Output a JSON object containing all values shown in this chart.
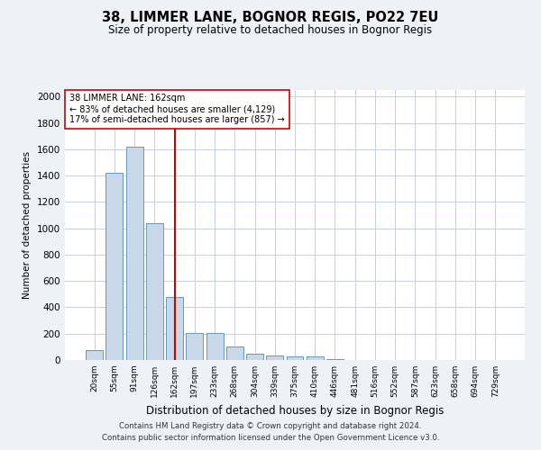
{
  "title1": "38, LIMMER LANE, BOGNOR REGIS, PO22 7EU",
  "title2": "Size of property relative to detached houses in Bognor Regis",
  "xlabel": "Distribution of detached houses by size in Bognor Regis",
  "ylabel": "Number of detached properties",
  "categories": [
    "20sqm",
    "55sqm",
    "91sqm",
    "126sqm",
    "162sqm",
    "197sqm",
    "233sqm",
    "268sqm",
    "304sqm",
    "339sqm",
    "375sqm",
    "410sqm",
    "446sqm",
    "481sqm",
    "516sqm",
    "552sqm",
    "587sqm",
    "623sqm",
    "658sqm",
    "694sqm",
    "729sqm"
  ],
  "values": [
    75,
    1420,
    1620,
    1040,
    480,
    205,
    205,
    100,
    50,
    35,
    25,
    25,
    10,
    0,
    0,
    0,
    0,
    0,
    0,
    0,
    0
  ],
  "highlight_index": 4,
  "highlight_color": "#cc0000",
  "bar_color": "#c8d8e8",
  "bar_edge_color": "#6699bb",
  "ylim": [
    0,
    2050
  ],
  "yticks": [
    0,
    200,
    400,
    600,
    800,
    1000,
    1200,
    1400,
    1600,
    1800,
    2000
  ],
  "annotation_text": "38 LIMMER LANE: 162sqm\n← 83% of detached houses are smaller (4,129)\n17% of semi-detached houses are larger (857) →",
  "footer1": "Contains HM Land Registry data © Crown copyright and database right 2024.",
  "footer2": "Contains public sector information licensed under the Open Government Licence v3.0.",
  "bg_color": "#eef2f7",
  "plot_bg_color": "#ffffff",
  "grid_color": "#c5cfe0"
}
